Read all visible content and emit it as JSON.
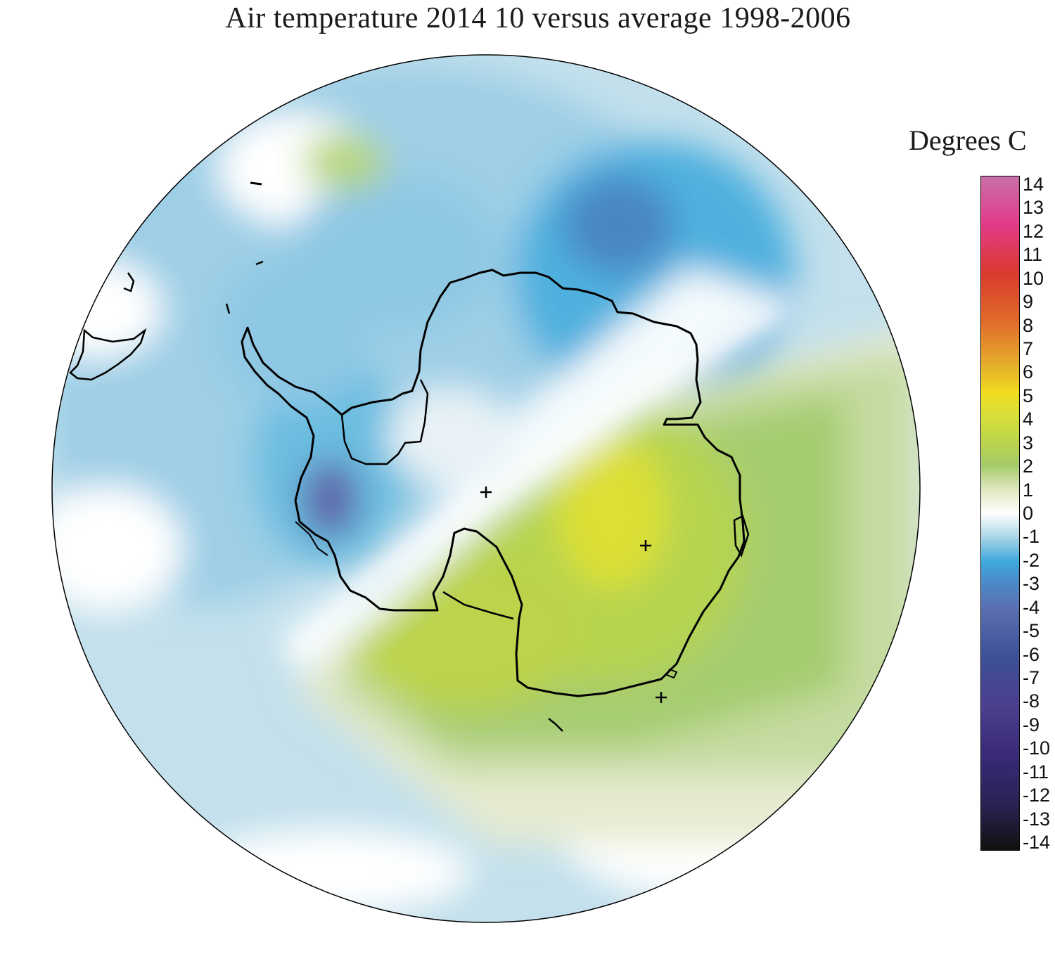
{
  "title": "Air temperature 2014 10 versus average 1998-2006",
  "legend": {
    "title": "Degrees C",
    "min": -14,
    "max": 14,
    "ticks": [
      "14",
      "13",
      "12",
      "11",
      "10",
      "9",
      "8",
      "7",
      "6",
      "5",
      "4",
      "3",
      "2",
      "1",
      "0",
      "-1",
      "-2",
      "-3",
      "-4",
      "-5",
      "-6",
      "-7",
      "-8",
      "-9",
      "-10",
      "-11",
      "-12",
      "-13",
      "-14"
    ],
    "colors": {
      "14": "#c86fa8",
      "12": "#e23b8a",
      "10": "#d93a2e",
      "8": "#e06a2a",
      "6": "#e6b42a",
      "5": "#f0dc1e",
      "4": "#d7df3c",
      "3": "#bcd54a",
      "2": "#a4cb6a",
      "1": "#dfe7bf",
      "0": "#ffffff",
      "-1": "#a9d5e6",
      "-2": "#3fa9dd",
      "-3": "#4e86c6",
      "-4": "#5a6fb0",
      "-6": "#3d4f97",
      "-8": "#4b3f8e",
      "-10": "#3a2a78",
      "-12": "#2a2455",
      "-14": "#111111"
    }
  },
  "map": {
    "projection": "south polar stereographic",
    "features": [
      "Antarctica coastline",
      "Antarctic Peninsula",
      "South America tip",
      "station markers"
    ]
  }
}
